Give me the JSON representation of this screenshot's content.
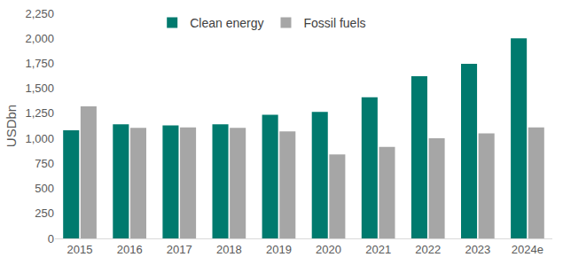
{
  "chart_data": {
    "type": "bar",
    "y_label": "USDbn",
    "categories": [
      "2015",
      "2016",
      "2017",
      "2018",
      "2019",
      "2020",
      "2021",
      "2022",
      "2023",
      "2024e"
    ],
    "series": [
      {
        "name": "Clean energy",
        "color": "#007a6e",
        "values": [
          1080,
          1140,
          1130,
          1140,
          1235,
          1265,
          1410,
          1620,
          1745,
          2000
        ]
      },
      {
        "name": "Fossil fuels",
        "color": "#a6a6a6",
        "values": [
          1320,
          1105,
          1110,
          1105,
          1070,
          840,
          915,
          1000,
          1050,
          1110
        ]
      }
    ],
    "ylim": [
      0,
      2250
    ],
    "yticks": [
      0,
      250,
      500,
      750,
      {
        "value": 1000,
        "label": "1,000"
      },
      {
        "value": 1250,
        "label": "1,250"
      },
      {
        "value": 1500,
        "label": "1,500"
      },
      {
        "value": 1750,
        "label": "1,750"
      },
      {
        "value": 2000,
        "label": "2,000"
      },
      {
        "value": 2250,
        "label": "2,250"
      }
    ],
    "grid": false,
    "legend": "top"
  }
}
